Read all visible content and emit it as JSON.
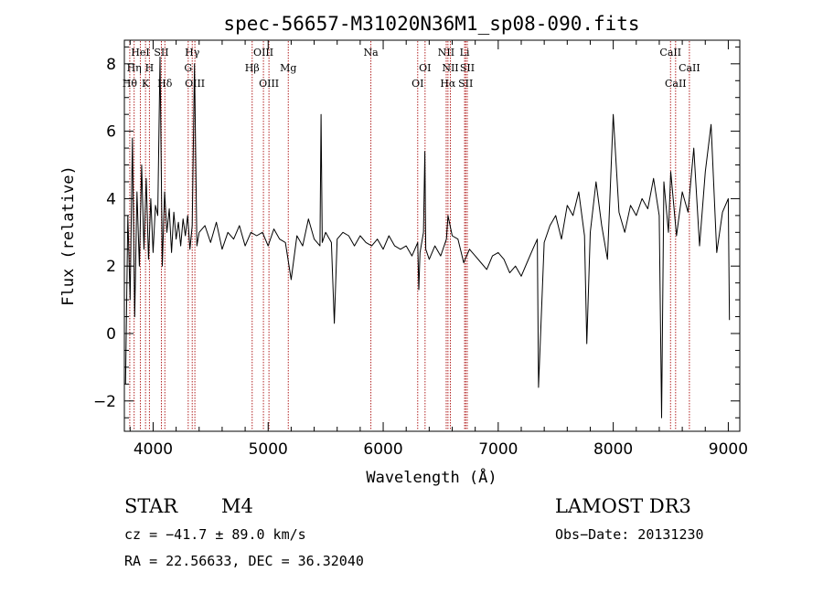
{
  "chart_data": {
    "type": "line",
    "title": "spec-56657-M31020N36M1_sp08-090.fits",
    "xlabel": "Wavelength (Å)",
    "ylabel": "Flux (relative)",
    "xlim": [
      3750,
      9100
    ],
    "ylim": [
      -2.9,
      8.7
    ],
    "x_ticks": [
      4000,
      5000,
      6000,
      7000,
      8000,
      9000
    ],
    "x_tick_labels": [
      "4000",
      "5000",
      "6000",
      "7000",
      "8000",
      "9000"
    ],
    "y_ticks": [
      -2,
      0,
      2,
      4,
      6,
      8
    ],
    "y_tick_labels": [
      "−2",
      "0",
      "2",
      "4",
      "6",
      "8"
    ],
    "grid": false,
    "line_color": "#000000",
    "marker_color": "#b22222",
    "series": [
      {
        "name": "spectrum",
        "x": [
          3760,
          3780,
          3800,
          3820,
          3840,
          3860,
          3880,
          3900,
          3920,
          3940,
          3960,
          3980,
          4000,
          4020,
          4040,
          4060,
          4080,
          4100,
          4120,
          4140,
          4160,
          4180,
          4200,
          4220,
          4240,
          4260,
          4280,
          4300,
          4320,
          4340,
          4360,
          4380,
          4400,
          4450,
          4500,
          4550,
          4600,
          4650,
          4700,
          4750,
          4800,
          4850,
          4900,
          4950,
          5000,
          5050,
          5100,
          5150,
          5200,
          5250,
          5300,
          5350,
          5400,
          5450,
          5460,
          5470,
          5500,
          5550,
          5575,
          5600,
          5650,
          5700,
          5750,
          5800,
          5850,
          5900,
          5950,
          6000,
          6050,
          6100,
          6150,
          6200,
          6250,
          6300,
          6310,
          6320,
          6350,
          6362,
          6370,
          6400,
          6450,
          6500,
          6550,
          6563,
          6600,
          6650,
          6700,
          6750,
          6800,
          6850,
          6900,
          6950,
          7000,
          7050,
          7100,
          7150,
          7200,
          7250,
          7300,
          7340,
          7350,
          7400,
          7450,
          7500,
          7550,
          7600,
          7650,
          7700,
          7750,
          7770,
          7800,
          7850,
          7900,
          7950,
          8000,
          8050,
          8100,
          8150,
          8200,
          8250,
          8300,
          8350,
          8400,
          8420,
          8440,
          8480,
          8500,
          8550,
          8600,
          8650,
          8700,
          8750,
          8800,
          8850,
          8900,
          8950,
          9000,
          9010
        ],
        "y": [
          -1.5,
          3.5,
          1.0,
          5.8,
          0.5,
          4.2,
          2.0,
          5.0,
          2.5,
          4.6,
          2.2,
          4.0,
          2.4,
          3.8,
          3.5,
          8.2,
          2.0,
          4.2,
          3.0,
          3.7,
          2.4,
          3.6,
          2.8,
          3.3,
          2.6,
          3.4,
          2.9,
          3.5,
          2.5,
          3.2,
          8.0,
          2.6,
          3.0,
          3.2,
          2.7,
          3.3,
          2.5,
          3.0,
          2.8,
          3.2,
          2.6,
          3.0,
          2.9,
          3.0,
          2.6,
          3.1,
          2.8,
          2.7,
          1.6,
          2.9,
          2.6,
          3.4,
          2.8,
          2.6,
          6.5,
          2.7,
          3.0,
          2.7,
          0.3,
          2.8,
          3.0,
          2.9,
          2.6,
          2.9,
          2.7,
          2.6,
          2.8,
          2.5,
          2.9,
          2.6,
          2.5,
          2.6,
          2.3,
          2.7,
          1.3,
          2.4,
          3.0,
          5.4,
          2.5,
          2.2,
          2.6,
          2.3,
          2.8,
          3.5,
          2.9,
          2.8,
          2.1,
          2.5,
          2.3,
          2.1,
          1.9,
          2.3,
          2.4,
          2.2,
          1.8,
          2.0,
          1.7,
          2.1,
          2.5,
          2.8,
          -1.6,
          2.7,
          3.2,
          3.5,
          2.8,
          3.8,
          3.5,
          4.2,
          2.9,
          -0.3,
          3.0,
          4.5,
          3.2,
          2.2,
          6.5,
          3.6,
          3.0,
          3.8,
          3.5,
          4.0,
          3.7,
          4.6,
          3.5,
          -2.5,
          4.5,
          3.0,
          4.8,
          2.9,
          4.2,
          3.6,
          5.5,
          2.6,
          4.8,
          6.2,
          2.4,
          3.6,
          4.0,
          0.4
        ]
      }
    ],
    "line_markers": [
      {
        "label": "HeI",
        "wavelength": 3889,
        "row": 1
      },
      {
        "label": "SII",
        "wavelength": 4072,
        "row": 1
      },
      {
        "label": "Hη",
        "wavelength": 3835,
        "row": 2
      },
      {
        "label": "H",
        "wavelength": 3968,
        "row": 2
      },
      {
        "label": "Hθ",
        "wavelength": 3797,
        "row": 3
      },
      {
        "label": "K",
        "wavelength": 3934,
        "row": 3
      },
      {
        "label": "Hδ",
        "wavelength": 4102,
        "row": 3
      },
      {
        "label": "Hγ",
        "wavelength": 4340,
        "row": 1
      },
      {
        "label": "G",
        "wavelength": 4305,
        "row": 2
      },
      {
        "label": "OIII",
        "wavelength": 4363,
        "row": 3
      },
      {
        "label": "OIII",
        "wavelength": 4959,
        "row": 1
      },
      {
        "label": "Hβ",
        "wavelength": 4861,
        "row": 2
      },
      {
        "label": "OIII",
        "wavelength": 5007,
        "row": 3
      },
      {
        "label": "Mg",
        "wavelength": 5175,
        "row": 2
      },
      {
        "label": "Na",
        "wavelength": 5893,
        "row": 1
      },
      {
        "label": "OI",
        "wavelength": 6364,
        "row": 2
      },
      {
        "label": "OI",
        "wavelength": 6300,
        "row": 3
      },
      {
        "label": "NII",
        "wavelength": 6548,
        "row": 1
      },
      {
        "label": "Li",
        "wavelength": 6708,
        "row": 1
      },
      {
        "label": "NII",
        "wavelength": 6584,
        "row": 2
      },
      {
        "label": "SII",
        "wavelength": 6731,
        "row": 2
      },
      {
        "label": "Hα",
        "wavelength": 6563,
        "row": 3
      },
      {
        "label": "SII",
        "wavelength": 6717,
        "row": 3
      },
      {
        "label": "CaII",
        "wavelength": 8498,
        "row": 1
      },
      {
        "label": "CaII",
        "wavelength": 8662,
        "row": 2
      },
      {
        "label": "CaII",
        "wavelength": 8542,
        "row": 3
      }
    ]
  },
  "info": {
    "object_class": "STAR",
    "subclass": "M4",
    "survey": "LAMOST DR3",
    "cz": "cz = −41.7 ± 89.0 km/s",
    "obs_date": "Obs−Date: 20131230",
    "coords": "RA =  22.56633, DEC =  36.32040"
  }
}
